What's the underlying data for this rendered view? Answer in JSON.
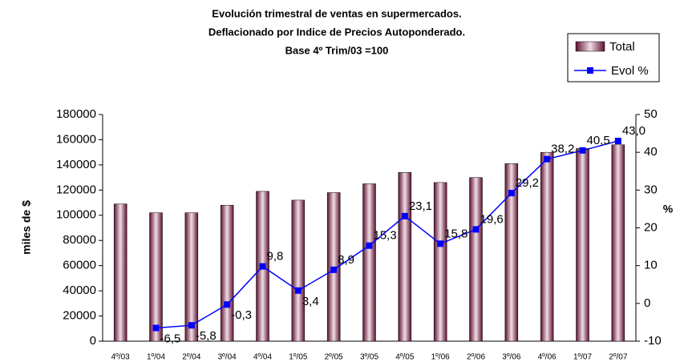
{
  "chart_data": {
    "type": "bar-line",
    "title": [
      "Evolución trimestral de ventas en supermercados.",
      "Deflacionado por Indice de Precios Autoponderado.",
      "Base 4º Trim/03 =100"
    ],
    "ylabel": "miles de $",
    "y2label": "%",
    "categories": [
      "4º/03",
      "1º/04",
      "2º/04",
      "3º/04",
      "4º/04",
      "1º/05",
      "2º/05",
      "3º/05",
      "4º/05",
      "1º/06",
      "2º/06",
      "3º/06",
      "4º/06",
      "1º/07",
      "2º/07"
    ],
    "series": [
      {
        "name": "Total",
        "color": "#8b3a5a",
        "axis": "y",
        "values": [
          109000,
          102000,
          102000,
          108000,
          119000,
          112000,
          118000,
          125000,
          134000,
          126000,
          130000,
          141000,
          150000,
          153000,
          156000
        ]
      },
      {
        "name": "Evol %",
        "color": "#0000ff",
        "axis": "y2",
        "values": [
          null,
          -6.5,
          -5.8,
          -0.3,
          9.8,
          3.4,
          8.9,
          15.3,
          23.1,
          15.8,
          19.6,
          29.2,
          38.2,
          40.5,
          43.0
        ],
        "value_labels": [
          null,
          "-6,5",
          "-5,8",
          "-0,3",
          "9,8",
          "3,4",
          "8,9",
          "15,3",
          "23,1",
          "15,8",
          "19,6",
          "29,2",
          "38,2",
          "40,5",
          "43,0"
        ]
      }
    ],
    "ylim": [
      0,
      180000
    ],
    "yticks": [
      0,
      20000,
      40000,
      60000,
      80000,
      100000,
      120000,
      140000,
      160000,
      180000
    ],
    "y2lim": [
      -10,
      50
    ],
    "y2ticks": [
      -10,
      0,
      10,
      20,
      30,
      40,
      50
    ]
  }
}
